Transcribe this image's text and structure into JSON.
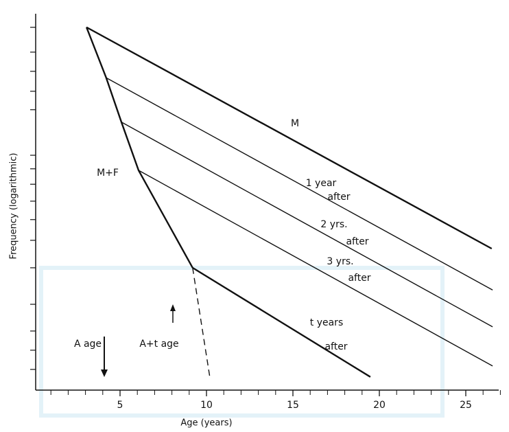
{
  "chart_data": {
    "type": "line",
    "x_label": "Age (years)",
    "y_label": "Frequency (logarithmic)",
    "log_scale": true,
    "xlim": [
      0,
      27.5
    ],
    "ylim": [
      0,
      100
    ],
    "xticks": [
      5,
      10,
      15,
      20,
      25
    ],
    "xminorticks": [
      1,
      2,
      3,
      4,
      6,
      7,
      8,
      9,
      11,
      12,
      13,
      14,
      16,
      17,
      18,
      19,
      21,
      22,
      23,
      24,
      26,
      27
    ],
    "yticks": [
      96.4,
      89.8,
      84.7,
      79.4,
      74.5,
      62.4,
      58.8,
      54.7,
      50.2,
      45.3,
      39.8,
      32.5,
      22.8,
      15.7,
      10.6,
      5.5
    ],
    "series": [
      {
        "color": "#111",
        "weight": "bold",
        "x": [
          3.06,
          4.2,
          5.08,
          6.07,
          9.2
        ],
        "values": [
          96.4,
          83.0,
          71.2,
          58.4,
          32.5
        ]
      },
      {
        "color": "#111",
        "weight": "bold",
        "x": [
          3.06,
          26.5
        ],
        "values": [
          96.4,
          37.6
        ]
      },
      {
        "color": "#111",
        "weight": "normal",
        "x": [
          4.2,
          26.55
        ],
        "values": [
          83.0,
          26.6
        ]
      },
      {
        "color": "#111",
        "weight": "normal",
        "x": [
          5.08,
          26.55
        ],
        "values": [
          71.2,
          16.8
        ]
      },
      {
        "color": "#111",
        "weight": "normal",
        "x": [
          6.07,
          26.55
        ],
        "values": [
          58.4,
          6.4
        ]
      },
      {
        "color": "#111",
        "weight": "bold",
        "x": [
          9.2,
          19.48
        ],
        "values": [
          32.5,
          3.5
        ]
      },
      {
        "color": "#111",
        "weight": "normal",
        "dashed": true,
        "x": [
          9.2,
          10.2
        ],
        "values": [
          32.5,
          3.3
        ]
      }
    ],
    "annotations": [
      "M",
      "M+F",
      "1 year",
      "after",
      "2 yrs.",
      "after",
      "3 yrs.",
      "after",
      "t years",
      "after",
      "A age",
      "A+t age"
    ]
  }
}
